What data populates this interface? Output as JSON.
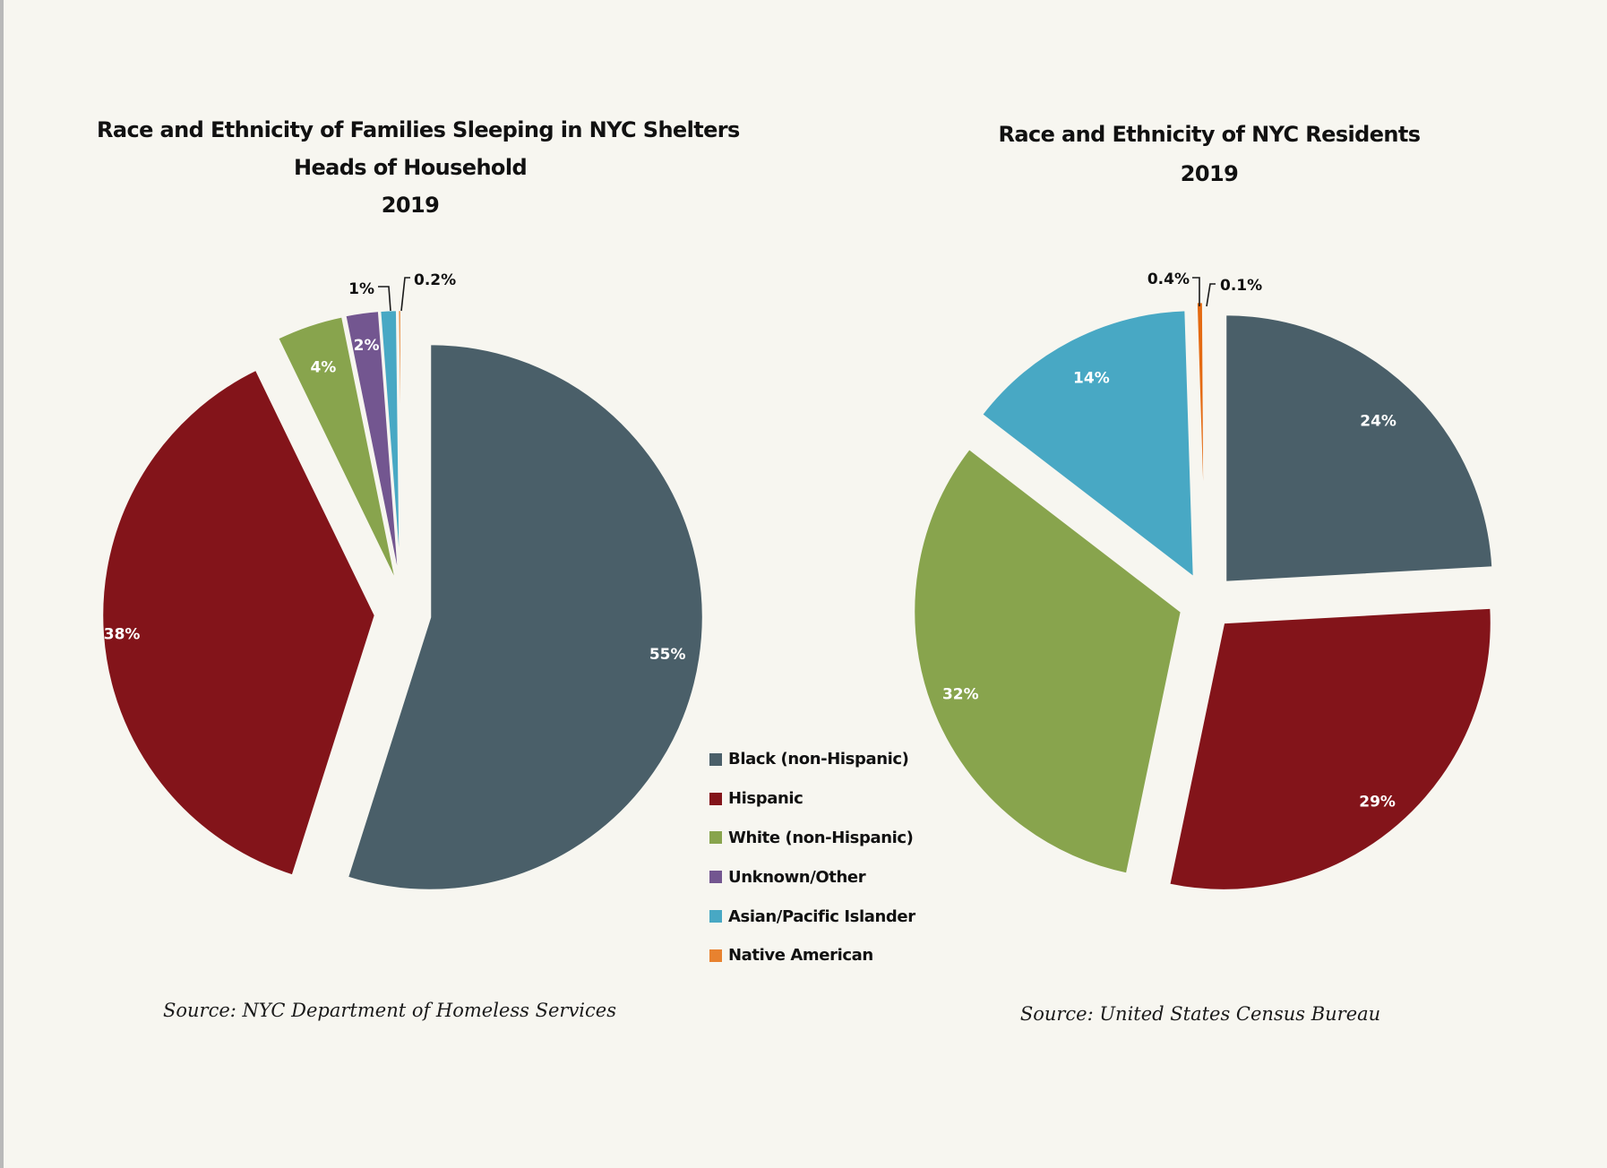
{
  "colors": {
    "background": "#f7f6f0",
    "black_non_hispanic": "#4a5f69",
    "hispanic": "#83141a",
    "white_non_hispanic": "#88a44d",
    "unknown_other": "#735690",
    "asian_pacific_islander": "#48a8c4",
    "native_american": "#e8822f",
    "native_american_right": "#e46a12",
    "unknown_other_right": "#9b7fc0"
  },
  "legend": {
    "items": [
      {
        "label": "Black (non-Hispanic)",
        "color": "#4a5f69"
      },
      {
        "label": "Hispanic",
        "color": "#83141a"
      },
      {
        "label": "White (non-Hispanic)",
        "color": "#88a44d"
      },
      {
        "label": "Unknown/Other",
        "color": "#735690"
      },
      {
        "label": "Asian/Pacific Islander",
        "color": "#48a8c4"
      },
      {
        "label": "Native American",
        "color": "#e8822f"
      }
    ],
    "placement": "bottom-right of left chart"
  },
  "chart_data": [
    {
      "type": "pie",
      "title": "Race and Ethnicity of Families Sleeping in NYC Shelters",
      "subtitle": "Heads of Household",
      "year": "2019",
      "source": "Source: NYC Department of Homeless Services",
      "exploded": true,
      "slices": [
        {
          "name": "Black (non-Hispanic)",
          "value": 55,
          "label": "55%",
          "color": "#4a5f69",
          "label_style": "inside"
        },
        {
          "name": "Hispanic",
          "value": 38,
          "label": "38%",
          "color": "#83141a",
          "label_style": "inside"
        },
        {
          "name": "White (non-Hispanic)",
          "value": 4,
          "label": "4%",
          "color": "#88a44d",
          "label_style": "inside"
        },
        {
          "name": "Unknown/Other",
          "value": 2,
          "label": "2%",
          "color": "#735690",
          "label_style": "inside"
        },
        {
          "name": "Asian/Pacific Islander",
          "value": 1,
          "label": "1%",
          "color": "#48a8c4",
          "label_style": "callout"
        },
        {
          "name": "Native American",
          "value": 0.2,
          "label": "0.2%",
          "color": "#e8822f",
          "label_style": "callout"
        }
      ]
    },
    {
      "type": "pie",
      "title": "Race and Ethnicity of NYC Residents",
      "year": "2019",
      "source": "Source: United States Census Bureau",
      "exploded": true,
      "slices": [
        {
          "name": "Black (non-Hispanic)",
          "value": 24,
          "label": "24%",
          "color": "#4a5f69",
          "label_style": "inside"
        },
        {
          "name": "Hispanic",
          "value": 29,
          "label": "29%",
          "color": "#83141a",
          "label_style": "inside"
        },
        {
          "name": "White (non-Hispanic)",
          "value": 32,
          "label": "32%",
          "color": "#88a44d",
          "label_style": "inside"
        },
        {
          "name": "Asian/Pacific Islander",
          "value": 14,
          "label": "14%",
          "color": "#48a8c4",
          "label_style": "inside"
        },
        {
          "name": "Native American",
          "value": 0.4,
          "label": "0.4%",
          "color": "#e46a12",
          "label_style": "callout"
        },
        {
          "name": "Unknown/Other",
          "value": 0.1,
          "label": "0.1%",
          "color": "#9b7fc0",
          "label_style": "callout"
        }
      ]
    }
  ]
}
